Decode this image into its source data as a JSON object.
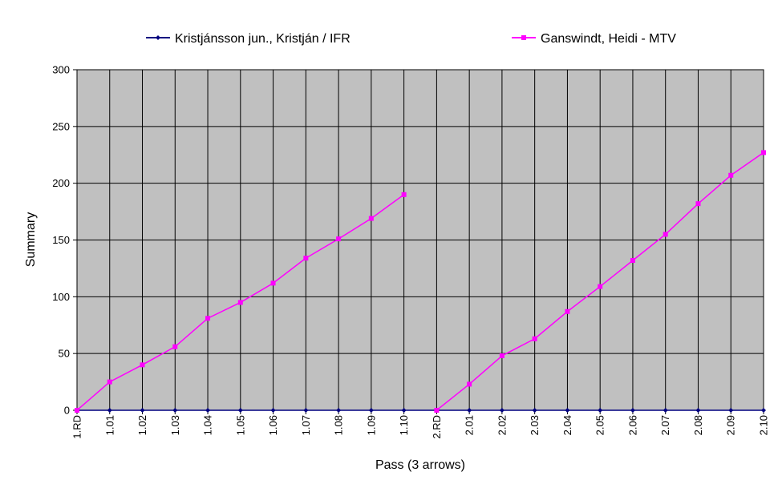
{
  "chart_data": {
    "type": "line",
    "xlabel": "Pass (3 arrows)",
    "ylabel": "Summary",
    "ylim": [
      0,
      300
    ],
    "yticks": [
      0,
      50,
      100,
      150,
      200,
      250,
      300
    ],
    "grid": true,
    "plot_background": "#c0c0c0",
    "legend_position": "top",
    "categories": [
      "1.RD",
      "1.01",
      "1.02",
      "1.03",
      "1.04",
      "1.05",
      "1.06",
      "1.07",
      "1.08",
      "1.09",
      "1.10",
      "2.RD",
      "2.01",
      "2.02",
      "2.03",
      "2.04",
      "2.05",
      "2.06",
      "2.07",
      "2.08",
      "2.09",
      "2.10"
    ],
    "series": [
      {
        "name": "Kristjánsson jun., Kristján / IFR",
        "color": "#000080",
        "marker": "diamond",
        "values": [
          0,
          0,
          0,
          0,
          0,
          0,
          0,
          0,
          0,
          0,
          0,
          0,
          0,
          0,
          0,
          0,
          0,
          0,
          0,
          0,
          0,
          0
        ]
      },
      {
        "name": "Ganswindt, Heidi - MTV",
        "color": "#ff00ff",
        "marker": "square",
        "values": [
          0,
          25,
          40,
          56,
          81,
          95,
          112,
          134,
          151,
          169,
          190,
          null,
          23,
          48,
          63,
          87,
          109,
          132,
          155,
          182,
          207,
          227
        ],
        "segments_note": "break",
        "break_before": "2.RD",
        "restart_value_at_break": 0
      }
    ]
  }
}
